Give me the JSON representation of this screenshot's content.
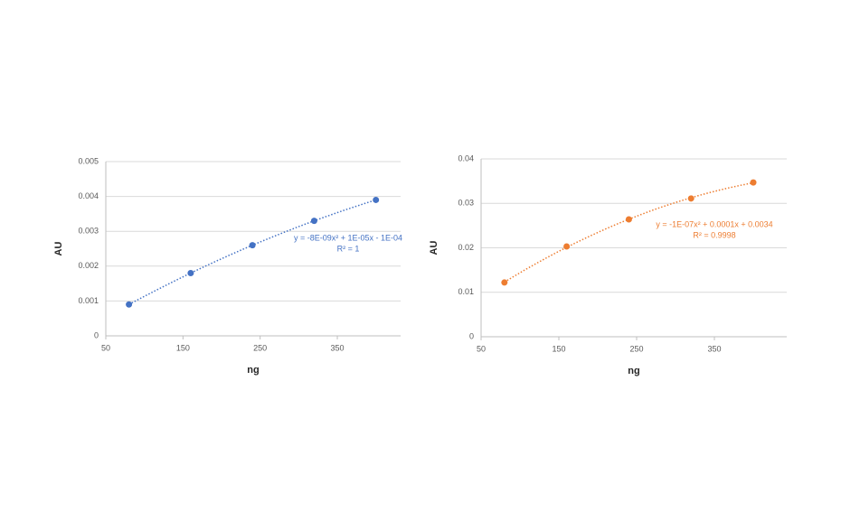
{
  "chart_data": [
    {
      "type": "scatter",
      "x_label": "ng",
      "y_label": "AU",
      "x": [
        80,
        160,
        240,
        320,
        400
      ],
      "values": [
        0.0009,
        0.0018,
        0.0026,
        0.0033,
        0.0039
      ],
      "color": "#4472c4",
      "trendline": true,
      "grid": true,
      "xlim": [
        50,
        432
      ],
      "xticks": [
        50,
        150,
        250,
        350
      ],
      "ylim": [
        0,
        0.005
      ],
      "yticks": [
        0,
        0.001,
        0.002,
        0.003,
        0.004,
        0.005
      ],
      "annotations": [
        "y = -8E-09x² + 1E-05x - 1E-04",
        "R² = 1"
      ]
    },
    {
      "type": "scatter",
      "x_label": "ng",
      "y_label": "AU",
      "x": [
        80,
        160,
        240,
        320,
        400
      ],
      "values": [
        0.0122,
        0.0203,
        0.0264,
        0.0311,
        0.0347
      ],
      "color": "#ed7d31",
      "trendline": true,
      "grid": true,
      "xlim": [
        50,
        443
      ],
      "xticks": [
        50,
        150,
        250,
        350
      ],
      "ylim": [
        0,
        0.04
      ],
      "yticks": [
        0,
        0.01,
        0.02,
        0.03,
        0.04
      ],
      "annotations": [
        "y = -1E-07x² + 0.0001x + 0.0034",
        "R² = 0.9998"
      ]
    }
  ]
}
